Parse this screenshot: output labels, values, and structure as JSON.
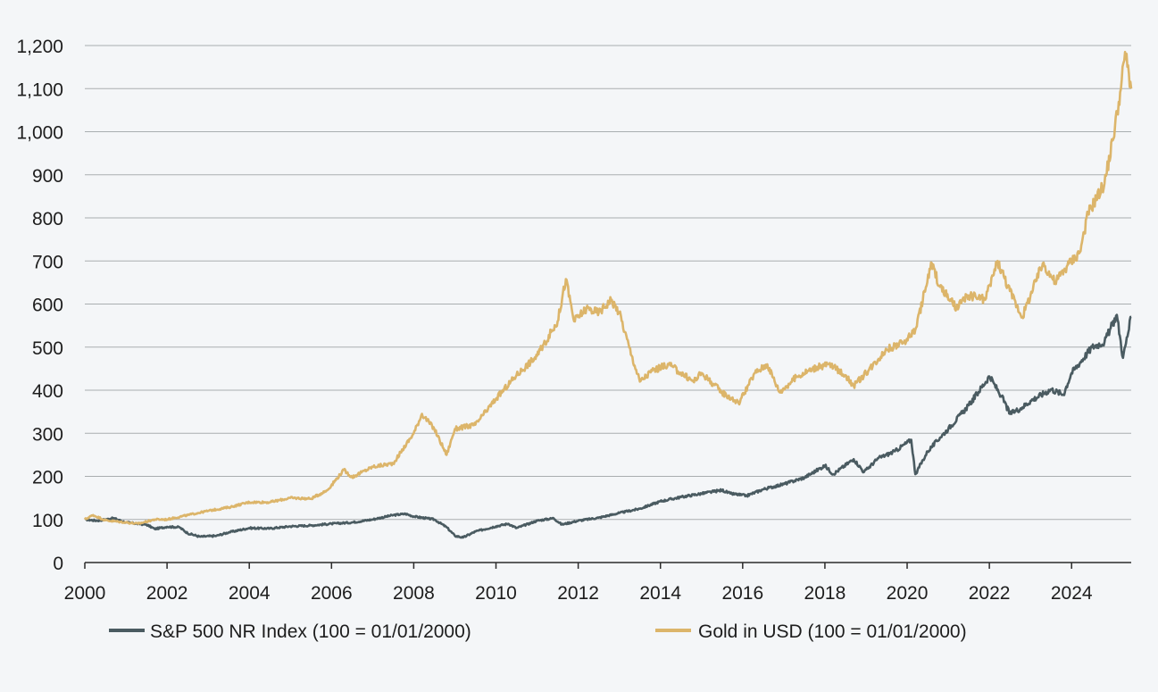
{
  "colors": {
    "background": "#f4f6f8",
    "grid": "#a9aeb0",
    "axis": "#2b2b2b",
    "sp500": "#4a5b61",
    "gold": "#dcb56a"
  },
  "chart_data": {
    "type": "line",
    "title": "",
    "xlabel": "",
    "ylabel": "",
    "xlim": [
      2000,
      2025.45
    ],
    "ylim": [
      0,
      1200
    ],
    "grid": true,
    "legend_position": "bottom",
    "x_ticks": [
      2000,
      2002,
      2004,
      2006,
      2008,
      2010,
      2012,
      2014,
      2016,
      2018,
      2020,
      2022,
      2024
    ],
    "x_tick_labels": [
      "2000",
      "2002",
      "2004",
      "2006",
      "2008",
      "2010",
      "2012",
      "2014",
      "2016",
      "2018",
      "2020",
      "2022",
      "2024"
    ],
    "y_ticks": [
      0,
      100,
      200,
      300,
      400,
      500,
      600,
      700,
      800,
      900,
      1000,
      1100,
      1200
    ],
    "y_tick_labels": [
      "0",
      "100",
      "200",
      "300",
      "400",
      "500",
      "600",
      "700",
      "800",
      "900",
      "1,000",
      "1,100",
      "1,200"
    ],
    "series": [
      {
        "name": "S&P 500 NR Index (100 = 01/01/2000)",
        "color": "#4a5b61",
        "points": [
          [
            2000.0,
            100
          ],
          [
            2000.3,
            97
          ],
          [
            2000.7,
            103
          ],
          [
            2001.0,
            93
          ],
          [
            2001.5,
            88
          ],
          [
            2001.7,
            78
          ],
          [
            2002.0,
            83
          ],
          [
            2002.3,
            82
          ],
          [
            2002.5,
            68
          ],
          [
            2002.8,
            60
          ],
          [
            2003.2,
            62
          ],
          [
            2003.5,
            70
          ],
          [
            2004.0,
            80
          ],
          [
            2004.5,
            79
          ],
          [
            2005.0,
            84
          ],
          [
            2005.5,
            86
          ],
          [
            2006.0,
            90
          ],
          [
            2006.5,
            93
          ],
          [
            2007.0,
            100
          ],
          [
            2007.5,
            110
          ],
          [
            2007.8,
            113
          ],
          [
            2008.0,
            107
          ],
          [
            2008.5,
            100
          ],
          [
            2008.8,
            82
          ],
          [
            2009.0,
            62
          ],
          [
            2009.2,
            58
          ],
          [
            2009.5,
            72
          ],
          [
            2010.0,
            84
          ],
          [
            2010.3,
            90
          ],
          [
            2010.5,
            80
          ],
          [
            2011.0,
            97
          ],
          [
            2011.4,
            103
          ],
          [
            2011.6,
            88
          ],
          [
            2012.0,
            97
          ],
          [
            2012.5,
            104
          ],
          [
            2013.0,
            115
          ],
          [
            2013.5,
            125
          ],
          [
            2014.0,
            142
          ],
          [
            2014.5,
            152
          ],
          [
            2015.0,
            160
          ],
          [
            2015.5,
            168
          ],
          [
            2015.7,
            160
          ],
          [
            2016.1,
            155
          ],
          [
            2016.5,
            170
          ],
          [
            2017.0,
            182
          ],
          [
            2017.5,
            197
          ],
          [
            2018.0,
            225
          ],
          [
            2018.2,
            205
          ],
          [
            2018.7,
            240
          ],
          [
            2018.95,
            210
          ],
          [
            2019.3,
            242
          ],
          [
            2019.7,
            258
          ],
          [
            2020.1,
            285
          ],
          [
            2020.2,
            205
          ],
          [
            2020.5,
            258
          ],
          [
            2020.8,
            290
          ],
          [
            2021.0,
            310
          ],
          [
            2021.5,
            365
          ],
          [
            2022.0,
            432
          ],
          [
            2022.3,
            385
          ],
          [
            2022.5,
            345
          ],
          [
            2022.8,
            360
          ],
          [
            2023.0,
            375
          ],
          [
            2023.5,
            402
          ],
          [
            2023.8,
            390
          ],
          [
            2024.0,
            440
          ],
          [
            2024.5,
            500
          ],
          [
            2024.8,
            512
          ],
          [
            2025.1,
            575
          ],
          [
            2025.25,
            475
          ],
          [
            2025.45,
            570
          ]
        ]
      },
      {
        "name": "Gold in USD (100 = 01/01/2000)",
        "color": "#dcb56a",
        "points": [
          [
            2000.0,
            100
          ],
          [
            2000.2,
            110
          ],
          [
            2000.5,
            98
          ],
          [
            2001.0,
            93
          ],
          [
            2001.3,
            90
          ],
          [
            2001.7,
            100
          ],
          [
            2002.0,
            100
          ],
          [
            2002.5,
            110
          ],
          [
            2003.0,
            120
          ],
          [
            2003.5,
            128
          ],
          [
            2004.0,
            140
          ],
          [
            2004.5,
            140
          ],
          [
            2005.0,
            150
          ],
          [
            2005.5,
            148
          ],
          [
            2005.9,
            168
          ],
          [
            2006.3,
            215
          ],
          [
            2006.5,
            198
          ],
          [
            2007.0,
            222
          ],
          [
            2007.5,
            230
          ],
          [
            2008.0,
            300
          ],
          [
            2008.2,
            345
          ],
          [
            2008.5,
            310
          ],
          [
            2008.8,
            250
          ],
          [
            2009.0,
            310
          ],
          [
            2009.5,
            320
          ],
          [
            2010.0,
            380
          ],
          [
            2010.5,
            435
          ],
          [
            2011.0,
            480
          ],
          [
            2011.5,
            560
          ],
          [
            2011.7,
            658
          ],
          [
            2011.9,
            560
          ],
          [
            2012.2,
            590
          ],
          [
            2012.5,
            580
          ],
          [
            2012.8,
            610
          ],
          [
            2013.0,
            580
          ],
          [
            2013.3,
            480
          ],
          [
            2013.5,
            420
          ],
          [
            2013.8,
            445
          ],
          [
            2014.2,
            460
          ],
          [
            2014.5,
            440
          ],
          [
            2014.8,
            420
          ],
          [
            2015.0,
            440
          ],
          [
            2015.5,
            395
          ],
          [
            2015.9,
            370
          ],
          [
            2016.3,
            440
          ],
          [
            2016.6,
            460
          ],
          [
            2016.9,
            395
          ],
          [
            2017.3,
            430
          ],
          [
            2017.7,
            450
          ],
          [
            2018.1,
            460
          ],
          [
            2018.5,
            435
          ],
          [
            2018.7,
            410
          ],
          [
            2019.0,
            440
          ],
          [
            2019.5,
            495
          ],
          [
            2019.9,
            510
          ],
          [
            2020.2,
            540
          ],
          [
            2020.6,
            695
          ],
          [
            2020.8,
            640
          ],
          [
            2021.2,
            590
          ],
          [
            2021.5,
            620
          ],
          [
            2021.9,
            610
          ],
          [
            2022.2,
            700
          ],
          [
            2022.5,
            630
          ],
          [
            2022.8,
            570
          ],
          [
            2023.0,
            620
          ],
          [
            2023.3,
            695
          ],
          [
            2023.6,
            650
          ],
          [
            2023.9,
            690
          ],
          [
            2024.2,
            720
          ],
          [
            2024.4,
            810
          ],
          [
            2024.8,
            880
          ],
          [
            2025.0,
            980
          ],
          [
            2025.2,
            1100
          ],
          [
            2025.3,
            1185
          ],
          [
            2025.45,
            1100
          ]
        ]
      }
    ]
  }
}
